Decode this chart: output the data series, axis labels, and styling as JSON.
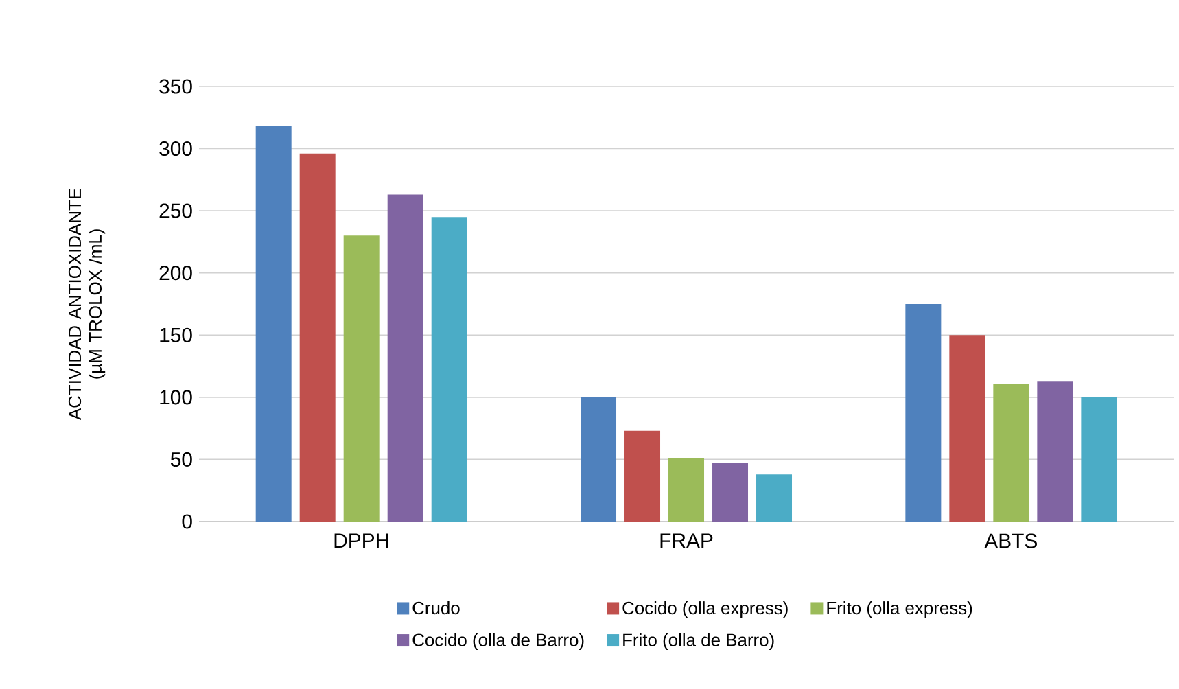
{
  "chart_data": {
    "type": "bar",
    "ylabel": "ACTIVIDAD ANTIOXIDANTE (µM TROLOX /mL)",
    "categories": [
      "DPPH",
      "FRAP",
      "ABTS"
    ],
    "series": [
      {
        "name": "Crudo",
        "color": "#4f81bd",
        "values": [
          318,
          100,
          175
        ]
      },
      {
        "name": "Cocido (olla express)",
        "color": "#c0504d",
        "values": [
          296,
          73,
          150
        ]
      },
      {
        "name": "Frito (olla express)",
        "color": "#9bbb59",
        "values": [
          230,
          51,
          111
        ]
      },
      {
        "name": "Cocido (olla de Barro)",
        "color": "#8064a2",
        "values": [
          263,
          47,
          113
        ]
      },
      {
        "name": "Frito (olla de Barro)",
        "color": "#4bacc6",
        "values": [
          245,
          38,
          100
        ]
      }
    ],
    "ylim": [
      0,
      350
    ],
    "yticks": [
      0,
      50,
      100,
      150,
      200,
      250,
      300,
      350
    ],
    "grid": "y",
    "legend": "bottom"
  }
}
